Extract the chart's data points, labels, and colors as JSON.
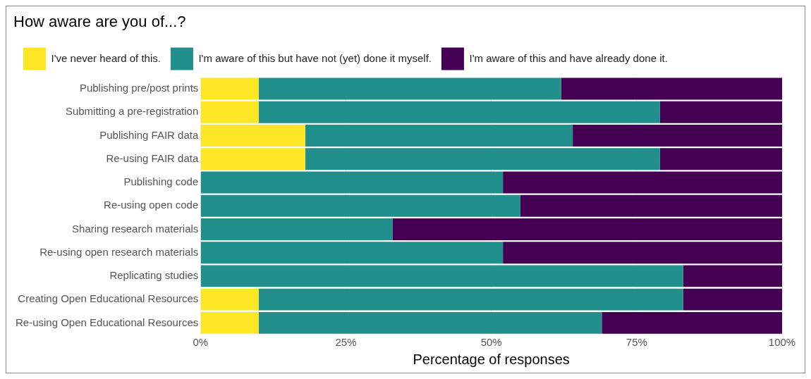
{
  "chart_data": {
    "type": "bar",
    "orientation": "horizontal",
    "stacked": true,
    "title": "How aware are you of...?",
    "xlabel": "Percentage of responses",
    "categories": [
      "Publishing pre/post prints",
      "Submitting a pre-registration",
      "Publishing FAIR data",
      "Re-using FAIR data",
      "Publishing code",
      "Re-using open code",
      "Sharing research materials",
      "Re-using open research materials",
      "Replicating studies",
      "Creating Open Educational Resources",
      "Re-using Open Educational Resources"
    ],
    "series": [
      {
        "name": "I've never heard of this.",
        "color": "#fde725",
        "values": [
          10,
          10,
          18,
          18,
          0,
          0,
          0,
          0,
          0,
          10,
          10
        ]
      },
      {
        "name": "I'm aware of this but have not (yet) done it myself.",
        "color": "#21908c",
        "values": [
          52,
          69,
          46,
          61,
          52,
          55,
          33,
          52,
          83,
          73,
          59
        ]
      },
      {
        "name": "I'm aware of this and have already done it.",
        "color": "#440154",
        "values": [
          38,
          21,
          36,
          21,
          48,
          45,
          67,
          48,
          17,
          17,
          31
        ]
      }
    ],
    "xlim": [
      0,
      100
    ],
    "xticks": [
      {
        "value": 0,
        "label": "0%"
      },
      {
        "value": 25,
        "label": "25%"
      },
      {
        "value": 50,
        "label": "50%"
      },
      {
        "value": 75,
        "label": "75%"
      },
      {
        "value": 100,
        "label": "100%"
      }
    ],
    "grid": true,
    "legend": "top left"
  }
}
